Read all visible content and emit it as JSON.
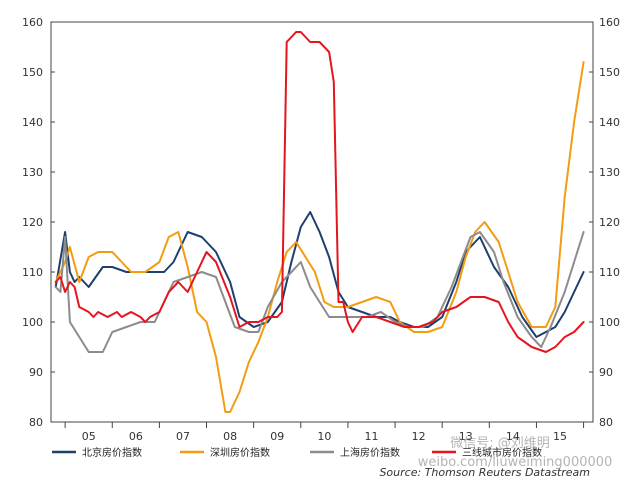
{
  "chart_data": {
    "type": "line",
    "title": "",
    "xlabel": "",
    "ylabel": "",
    "ylim": [
      80,
      160
    ],
    "y_ticks": [
      80,
      90,
      100,
      110,
      120,
      130,
      140,
      150,
      160
    ],
    "x_range": [
      2004.7,
      2016.2
    ],
    "x_tick_labels": [
      "05",
      "06",
      "07",
      "08",
      "09",
      "10",
      "11",
      "12",
      "13",
      "14",
      "15"
    ],
    "grid": false,
    "legend_position": "bottom",
    "source": "Source: Thomson Reuters Datastream",
    "series": [
      {
        "name": "北京房价指数",
        "color": "#1f3f6e",
        "x": [
          2004.8,
          2005.0,
          2005.1,
          2005.2,
          2005.3,
          2005.5,
          2005.8,
          2006.0,
          2006.3,
          2006.6,
          2006.9,
          2007.1,
          2007.3,
          2007.6,
          2007.9,
          2008.2,
          2008.5,
          2008.7,
          2009.0,
          2009.3,
          2009.6,
          2009.8,
          2010.0,
          2010.2,
          2010.4,
          2010.6,
          2010.8,
          2011.0,
          2011.3,
          2011.6,
          2011.9,
          2012.1,
          2012.4,
          2012.7,
          2013.0,
          2013.3,
          2013.5,
          2013.8,
          2014.1,
          2014.4,
          2014.7,
          2015.0,
          2015.2,
          2015.4,
          2015.6,
          2015.8,
          2016.0
        ],
        "y": [
          107,
          118,
          110,
          108,
          109,
          107,
          111,
          111,
          110,
          110,
          110,
          110,
          112,
          118,
          117,
          114,
          108,
          101,
          99,
          100,
          104,
          112,
          119,
          122,
          118,
          113,
          106,
          103,
          102,
          101,
          101,
          100,
          99,
          99,
          101,
          108,
          114,
          117,
          111,
          107,
          101,
          97,
          98,
          99,
          102,
          106,
          110
        ]
      },
      {
        "name": "深圳房价指数",
        "color": "#f39c12",
        "x": [
          2004.8,
          2005.0,
          2005.1,
          2005.3,
          2005.5,
          2005.7,
          2006.0,
          2006.2,
          2006.4,
          2006.7,
          2007.0,
          2007.2,
          2007.4,
          2007.6,
          2007.8,
          2008.0,
          2008.2,
          2008.4,
          2008.5,
          2008.7,
          2008.9,
          2009.1,
          2009.3,
          2009.5,
          2009.7,
          2009.9,
          2010.1,
          2010.3,
          2010.5,
          2010.7,
          2011.0,
          2011.3,
          2011.6,
          2011.9,
          2012.1,
          2012.4,
          2012.7,
          2013.0,
          2013.3,
          2013.5,
          2013.7,
          2013.9,
          2014.2,
          2014.4,
          2014.6,
          2014.9,
          2015.2,
          2015.4,
          2015.6,
          2015.8,
          2016.0
        ],
        "y": [
          108,
          112,
          115,
          108,
          113,
          114,
          114,
          112,
          110,
          110,
          112,
          117,
          118,
          111,
          102,
          100,
          93,
          82,
          82,
          86,
          92,
          96,
          101,
          108,
          114,
          116,
          113,
          110,
          104,
          103,
          103,
          104,
          105,
          104,
          100,
          98,
          98,
          99,
          106,
          113,
          118,
          120,
          116,
          110,
          104,
          99,
          99,
          103,
          125,
          140,
          152
        ]
      },
      {
        "name": "上海房价指数",
        "color": "#8c8c8c",
        "x": [
          2004.8,
          2004.9,
          2005.0,
          2005.1,
          2005.3,
          2005.5,
          2005.8,
          2006.0,
          2006.3,
          2006.6,
          2006.9,
          2007.1,
          2007.3,
          2007.6,
          2007.9,
          2008.2,
          2008.4,
          2008.6,
          2008.9,
          2009.1,
          2009.3,
          2009.6,
          2009.8,
          2010.0,
          2010.2,
          2010.4,
          2010.6,
          2010.8,
          2011.1,
          2011.4,
          2011.7,
          2012.0,
          2012.3,
          2012.6,
          2012.9,
          2013.2,
          2013.4,
          2013.6,
          2013.8,
          2014.1,
          2014.3,
          2014.6,
          2014.9,
          2015.1,
          2015.3,
          2015.6,
          2015.8,
          2016.0
        ],
        "y": [
          107,
          106,
          117,
          100,
          97,
          94,
          94,
          98,
          99,
          100,
          100,
          104,
          108,
          109,
          110,
          109,
          104,
          99,
          98,
          98,
          103,
          108,
          110,
          112,
          107,
          104,
          101,
          101,
          101,
          101,
          102,
          100,
          99,
          99,
          101,
          107,
          112,
          117,
          118,
          114,
          108,
          101,
          97,
          95,
          99,
          106,
          112,
          118
        ]
      },
      {
        "name": "三线城市房价指数",
        "color": "#e3161e",
        "x": [
          2004.8,
          2004.9,
          2005.0,
          2005.1,
          2005.2,
          2005.3,
          2005.5,
          2005.6,
          2005.7,
          2005.9,
          2006.1,
          2006.2,
          2006.4,
          2006.6,
          2006.7,
          2006.8,
          2007.0,
          2007.2,
          2007.4,
          2007.6,
          2007.8,
          2008.0,
          2008.2,
          2008.5,
          2008.7,
          2008.9,
          2009.1,
          2009.3,
          2009.5,
          2009.6,
          2009.7,
          2009.8,
          2009.9,
          2010.0,
          2010.2,
          2010.4,
          2010.6,
          2010.7,
          2010.8,
          2010.9,
          2011.0,
          2011.1,
          2011.3,
          2011.6,
          2011.9,
          2012.2,
          2012.5,
          2012.8,
          2013.0,
          2013.3,
          2013.6,
          2013.9,
          2014.2,
          2014.4,
          2014.6,
          2014.9,
          2015.2,
          2015.4,
          2015.6,
          2015.8,
          2016.0
        ],
        "y": [
          108,
          109,
          106,
          108,
          107,
          103,
          102,
          101,
          102,
          101,
          102,
          101,
          102,
          101,
          100,
          101,
          102,
          106,
          108,
          106,
          110,
          114,
          112,
          105,
          99,
          100,
          100,
          101,
          101,
          102,
          156,
          157,
          158,
          158,
          156,
          156,
          154,
          148,
          104,
          104,
          100,
          98,
          101,
          101,
          100,
          99,
          99,
          100,
          102,
          103,
          105,
          105,
          104,
          100,
          97,
          95,
          94,
          95,
          97,
          98,
          100
        ]
      }
    ]
  },
  "legend": [
    {
      "label": "北京房价指数",
      "color": "#1f3f6e"
    },
    {
      "label": "深圳房价指数",
      "color": "#f39c12"
    },
    {
      "label": "上海房价指数",
      "color": "#8c8c8c"
    },
    {
      "label": "三线城市房价指数",
      "color": "#e3161e"
    }
  ],
  "watermark": {
    "weixin": "微信号: @刘维明",
    "weibo": "weibo.com/liuweiming000000"
  }
}
